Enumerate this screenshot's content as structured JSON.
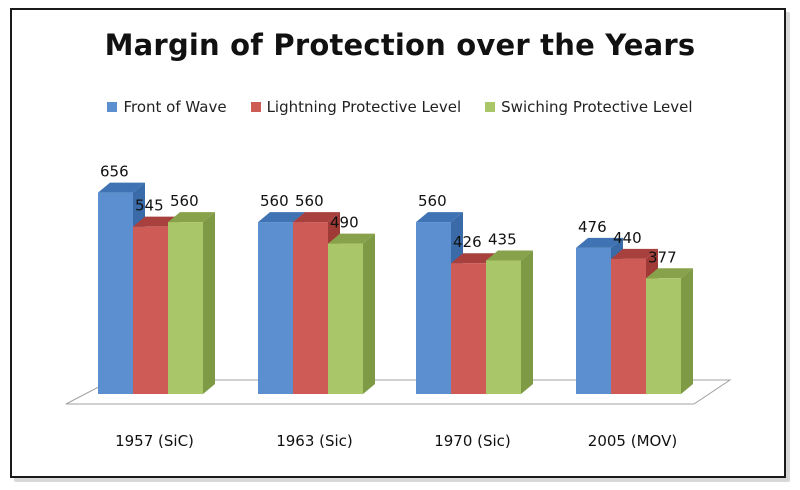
{
  "chart_data": {
    "type": "bar",
    "title": "Margin of Protection over the Years",
    "categories": [
      "1957 (SiC)",
      "1963 (Sic)",
      "1970 (Sic)",
      "2005 (MOV)"
    ],
    "series": [
      {
        "name": "Front of Wave",
        "values": [
          656,
          560,
          560,
          476
        ],
        "color": "#5b8fd0",
        "side": "#3a6aa8",
        "top": "#3f73b3"
      },
      {
        "name": "Lightning Protective Level",
        "values": [
          545,
          560,
          426,
          440
        ],
        "color": "#cf5b57",
        "side": "#9f3a36",
        "top": "#a8413d"
      },
      {
        "name": "Swiching Protective Level",
        "values": [
          560,
          490,
          435,
          377
        ],
        "color": "#a9c768",
        "side": "#7e9a45",
        "top": "#87a24b"
      }
    ],
    "legend_position": "top",
    "grid": false,
    "style": "3d-clustered"
  }
}
